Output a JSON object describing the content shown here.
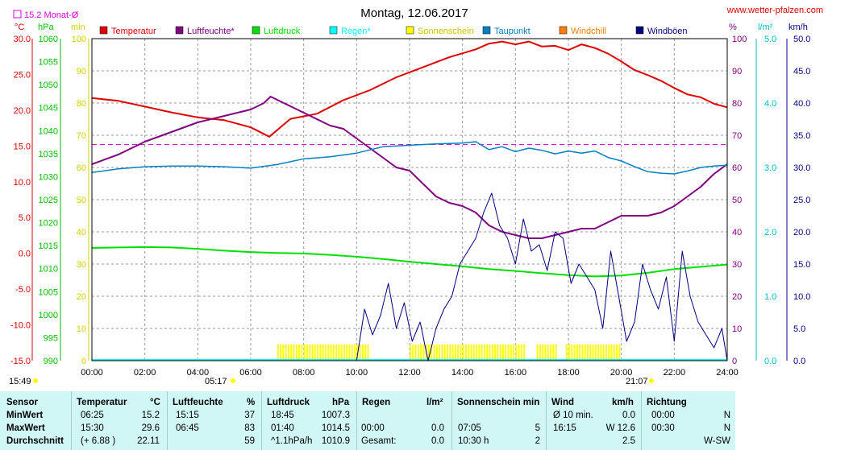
{
  "header": {
    "date_title": "Montag, 12.06.2017",
    "website": "www.wetter-pfalzen.com",
    "month_avg": "15.2 Monat-Ø"
  },
  "units": {
    "temp": "°C",
    "pressure": "hPa",
    "minutes": "min",
    "percent": "%",
    "rain": "l/m²",
    "wind": "km/h"
  },
  "legend": [
    {
      "label": "Temperatur",
      "color": "#e00000"
    },
    {
      "label": "Luftfeuchte*",
      "color": "#800080"
    },
    {
      "label": "Luftdruck",
      "color": "#00e000"
    },
    {
      "label": "Regen*",
      "color": "#00ffff"
    },
    {
      "label": "Sonnenschein",
      "color": "#ffff00"
    },
    {
      "label": "Taupunkt",
      "color": "#0080c0"
    },
    {
      "label": "Windchill",
      "color": "#ff8000"
    },
    {
      "label": "Windböen",
      "color": "#000080"
    }
  ],
  "chart_data": {
    "type": "line",
    "x_label_hours": [
      "00:00",
      "02:00",
      "04:00",
      "06:00",
      "08:00",
      "10:00",
      "12:00",
      "14:00",
      "16:00",
      "18:00",
      "20:00",
      "22:00",
      "24:00"
    ],
    "axes": {
      "temp_c": {
        "range": [
          -15,
          30
        ],
        "ticks": [
          "30.0",
          "25.0",
          "20.0",
          "15.0",
          "10.0",
          "5.0",
          "0.0",
          "-5.0",
          "-10.0",
          "-15.0"
        ],
        "color": "#e00000"
      },
      "pressure_hpa": {
        "range": [
          990,
          1060
        ],
        "ticks": [
          "1060",
          "1055",
          "1050",
          "1045",
          "1040",
          "1035",
          "1030",
          "1025",
          "1020",
          "1015",
          "1010",
          "1005",
          "1000",
          "995",
          "990"
        ],
        "color": "#00c000"
      },
      "minutes": {
        "range": [
          0,
          100
        ],
        "ticks": [
          "100",
          "90",
          "80",
          "70",
          "60",
          "50",
          "40",
          "30",
          "20",
          "10",
          "0"
        ],
        "color": "#e0e000"
      },
      "percent": {
        "range": [
          0,
          100
        ],
        "ticks": [
          "100",
          "90",
          "80",
          "70",
          "60",
          "50",
          "40",
          "30",
          "20",
          "10",
          "0"
        ],
        "color": "#800080"
      },
      "rain": {
        "range": [
          0,
          5
        ],
        "ticks": [
          "5.0",
          "4.0",
          "3.0",
          "2.0",
          "1.0",
          "0.0"
        ],
        "color": "#00c0c0"
      },
      "wind_kmh": {
        "range": [
          0,
          50
        ],
        "ticks": [
          "50.0",
          "45.0",
          "40.0",
          "35.0",
          "30.0",
          "25.0",
          "20.0",
          "15.0",
          "10.0",
          "5.0",
          "0.0"
        ],
        "color": "#000080"
      }
    },
    "month_avg_temp": 15.2,
    "sunrise": "05:17",
    "sunset": "21:07",
    "dawn": "15:49",
    "series": [
      {
        "name": "Temperatur",
        "unit": "°C",
        "x": [
          0,
          1,
          2,
          3,
          4,
          5,
          6,
          6.7,
          7.5,
          8.5,
          9.5,
          10.5,
          11.5,
          12.5,
          13.5,
          14.5,
          15,
          15.5,
          16,
          16.5,
          17,
          17.5,
          18,
          18.5,
          19,
          19.5,
          20,
          20.5,
          21,
          21.5,
          22,
          22.5,
          23,
          23.5,
          24
        ],
        "y": [
          21.7,
          21.3,
          20.5,
          19.7,
          19.0,
          18.6,
          17.6,
          16.3,
          18.8,
          19.5,
          21.4,
          22.8,
          24.6,
          26.0,
          27.4,
          28.5,
          29.3,
          29.6,
          29.2,
          29.6,
          28.9,
          29.0,
          28.4,
          29.2,
          28.7,
          27.9,
          26.8,
          25.6,
          24.9,
          24.1,
          23.1,
          22.2,
          21.8,
          20.9,
          20.4
        ]
      },
      {
        "name": "Luftfeuchte",
        "unit": "%",
        "x": [
          0,
          1,
          2,
          3,
          4,
          5,
          6,
          6.5,
          6.75,
          7,
          8,
          9,
          9.5,
          10,
          11,
          11.5,
          12,
          12.5,
          13,
          13.5,
          14,
          14.5,
          15,
          15.5,
          16,
          16.5,
          17,
          17.5,
          18,
          18.5,
          19,
          19.5,
          20,
          20.5,
          21,
          21.5,
          22,
          22.5,
          23,
          23.5,
          24
        ],
        "y": [
          61,
          64,
          68,
          71,
          74,
          76,
          78,
          80,
          82,
          81,
          77,
          73,
          72,
          69,
          63,
          60,
          59,
          55,
          51,
          49,
          48,
          46,
          42,
          40,
          39,
          38,
          38,
          39,
          40,
          41,
          41,
          43,
          45,
          45,
          45,
          46,
          48,
          51,
          54,
          58,
          61
        ]
      },
      {
        "name": "Luftdruck",
        "unit": "hPa",
        "x": [
          0,
          1,
          2,
          3,
          4,
          5,
          6,
          7,
          8,
          9,
          10,
          11,
          12,
          13,
          14,
          15,
          16,
          17,
          18,
          19,
          20,
          21,
          22,
          23,
          24
        ],
        "y": [
          1014.5,
          1014.6,
          1014.7,
          1014.6,
          1014.3,
          1013.9,
          1013.6,
          1013.4,
          1013.3,
          1013.0,
          1012.6,
          1012.1,
          1011.5,
          1011.0,
          1010.5,
          1009.9,
          1009.5,
          1009.0,
          1008.6,
          1008.3,
          1008.5,
          1009.1,
          1009.9,
          1010.4,
          1010.9
        ]
      },
      {
        "name": "Taupunkt",
        "unit": "°C",
        "x": [
          0,
          1,
          2,
          3,
          4,
          5,
          6,
          7,
          8,
          9,
          10,
          11,
          12,
          13,
          14,
          14.5,
          15,
          15.5,
          16,
          16.5,
          17,
          17.5,
          18,
          18.5,
          19,
          19.5,
          20,
          20.5,
          21,
          21.5,
          22,
          22.5,
          23,
          23.5,
          24
        ],
        "y": [
          11.3,
          11.8,
          12.1,
          12.2,
          12.2,
          12.1,
          11.9,
          12.4,
          13.2,
          13.5,
          14.0,
          14.9,
          15.1,
          15.3,
          15.4,
          15.6,
          14.5,
          14.9,
          14.2,
          14.7,
          14.4,
          13.9,
          14.3,
          14.0,
          14.3,
          13.4,
          12.9,
          12.1,
          11.4,
          11.2,
          11.1,
          11.5,
          12.0,
          12.2,
          12.3
        ]
      },
      {
        "name": "Windböen",
        "unit": "km/h",
        "x": [
          10,
          10.3,
          10.6,
          10.9,
          11.2,
          11.5,
          11.8,
          12.1,
          12.4,
          12.7,
          13.0,
          13.3,
          13.6,
          13.9,
          14.2,
          14.5,
          14.8,
          15.1,
          15.4,
          15.7,
          16.0,
          16.3,
          16.6,
          16.9,
          17.2,
          17.5,
          17.8,
          18.1,
          18.4,
          18.7,
          19.0,
          19.3,
          19.6,
          19.9,
          20.2,
          20.5,
          20.8,
          21.1,
          21.4,
          21.7,
          22.0,
          22.3,
          22.6,
          22.9,
          23.2,
          23.5,
          23.8,
          24
        ],
        "y": [
          0,
          8,
          4,
          7,
          12,
          5,
          9,
          3,
          6,
          0,
          5,
          8,
          10,
          15,
          17,
          19,
          23,
          26,
          21,
          19,
          15,
          22,
          17,
          18,
          14,
          20,
          19,
          12,
          15,
          13,
          11,
          5,
          17,
          10,
          3,
          6,
          15,
          11,
          8,
          13,
          3,
          17,
          10,
          6,
          4,
          2,
          5,
          0
        ]
      }
    ],
    "sunshine_blocks_hours": [
      [
        7,
        10.4
      ],
      [
        12,
        13.2
      ],
      [
        13.3,
        14.3
      ],
      [
        14.4,
        16.4
      ],
      [
        16.8,
        17.6
      ],
      [
        17.9,
        20
      ]
    ]
  },
  "stats": {
    "headers": {
      "sensor": "Sensor",
      "temp": "Temperatur",
      "temp_unit": "°C",
      "hum": "Luftfeuchte",
      "hum_unit": "%",
      "press": "Luftdruck",
      "press_unit": "hPa",
      "rain": "Regen",
      "rain_unit": "l/m²",
      "sun": "Sonnenschein min",
      "wind": "Wind",
      "wind_unit": "km/h",
      "dir": "Richtung"
    },
    "rows": [
      {
        "label": "MinWert",
        "temp_time": "06:25",
        "temp_val": "15.2",
        "hum_time": "15:15",
        "hum_val": "37",
        "press_time": "18:45",
        "press_val": "1007.3",
        "rain_time": "",
        "rain_val": "",
        "sun_time": "",
        "sun_val": "",
        "wind_time": "Ø 10 min.",
        "wind_val": "0.0",
        "dir_time": "00:00",
        "dir_val": "N"
      },
      {
        "label": "MaxWert",
        "temp_time": "15:30",
        "temp_val": "29.6",
        "hum_time": "06:45",
        "hum_val": "83",
        "press_time": "01:40",
        "press_val": "1014.5",
        "rain_time": "00:00",
        "rain_val": "0.0",
        "sun_time": "07:05",
        "sun_val": "5",
        "wind_time": "16:15",
        "wind_val": "W 12.6",
        "dir_time": "00:30",
        "dir_val": "N"
      },
      {
        "label": "Durchschnitt",
        "temp_time": "(+ 6.88 )",
        "temp_val": "22.11",
        "hum_time": "",
        "hum_val": "59",
        "press_time": "^1.1hPa/h",
        "press_val": "1010.9",
        "rain_time": "Gesamt:",
        "rain_val": "0.0",
        "sun_time": "10:30 h",
        "sun_val": "2",
        "wind_time": "",
        "wind_val": "2.5",
        "dir_time": "",
        "dir_val": "W-SW"
      }
    ]
  }
}
